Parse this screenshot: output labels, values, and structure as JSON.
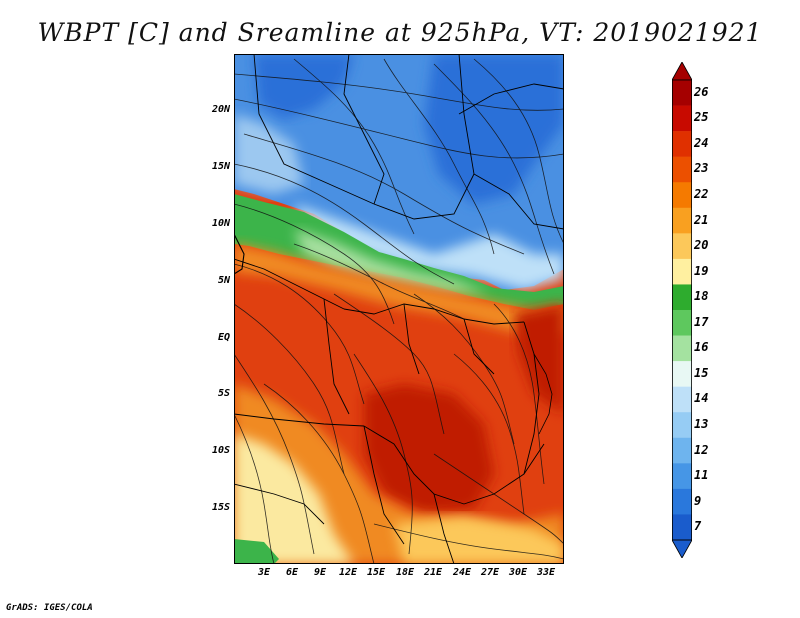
{
  "title": "WBPT [C] and Sreamline at 925hPa, VT: 2019021921",
  "credit": "GrADS: IGES/COLA",
  "lat_labels": [
    "20N",
    "15N",
    "10N",
    "5N",
    "EQ",
    "5S",
    "10S",
    "15S"
  ],
  "lon_labels": [
    "3E",
    "6E",
    "9E",
    "12E",
    "15E",
    "18E",
    "21E",
    "24E",
    "27E",
    "30E",
    "33E"
  ],
  "colorbar": {
    "labels": [
      "26",
      "25",
      "24",
      "23",
      "22",
      "21",
      "20",
      "19",
      "18",
      "17",
      "16",
      "15",
      "14",
      "13",
      "12",
      "11",
      "9",
      "7"
    ],
    "colors": [
      "#a50000",
      "#c80a00",
      "#e03000",
      "#ec5000",
      "#f57a00",
      "#f9a020",
      "#fcc85a",
      "#fff0a0",
      "#2eac2e",
      "#5ec85e",
      "#a4e2a0",
      "#e8f8f4",
      "#bee0f8",
      "#96ccf4",
      "#6eb4ee",
      "#4696e6",
      "#2a78dc",
      "#1a5ccc"
    ]
  },
  "map_colors": {
    "deep_blue": "#2a6fd8",
    "blue": "#4a90e2",
    "light_blue": "#9cc8f0",
    "green": "#3cb44a",
    "light_green": "#a8e0a0",
    "yellow": "#fbe9a0",
    "orange": "#f08a20",
    "red_orange": "#e04010",
    "dark_red": "#c01c00"
  }
}
